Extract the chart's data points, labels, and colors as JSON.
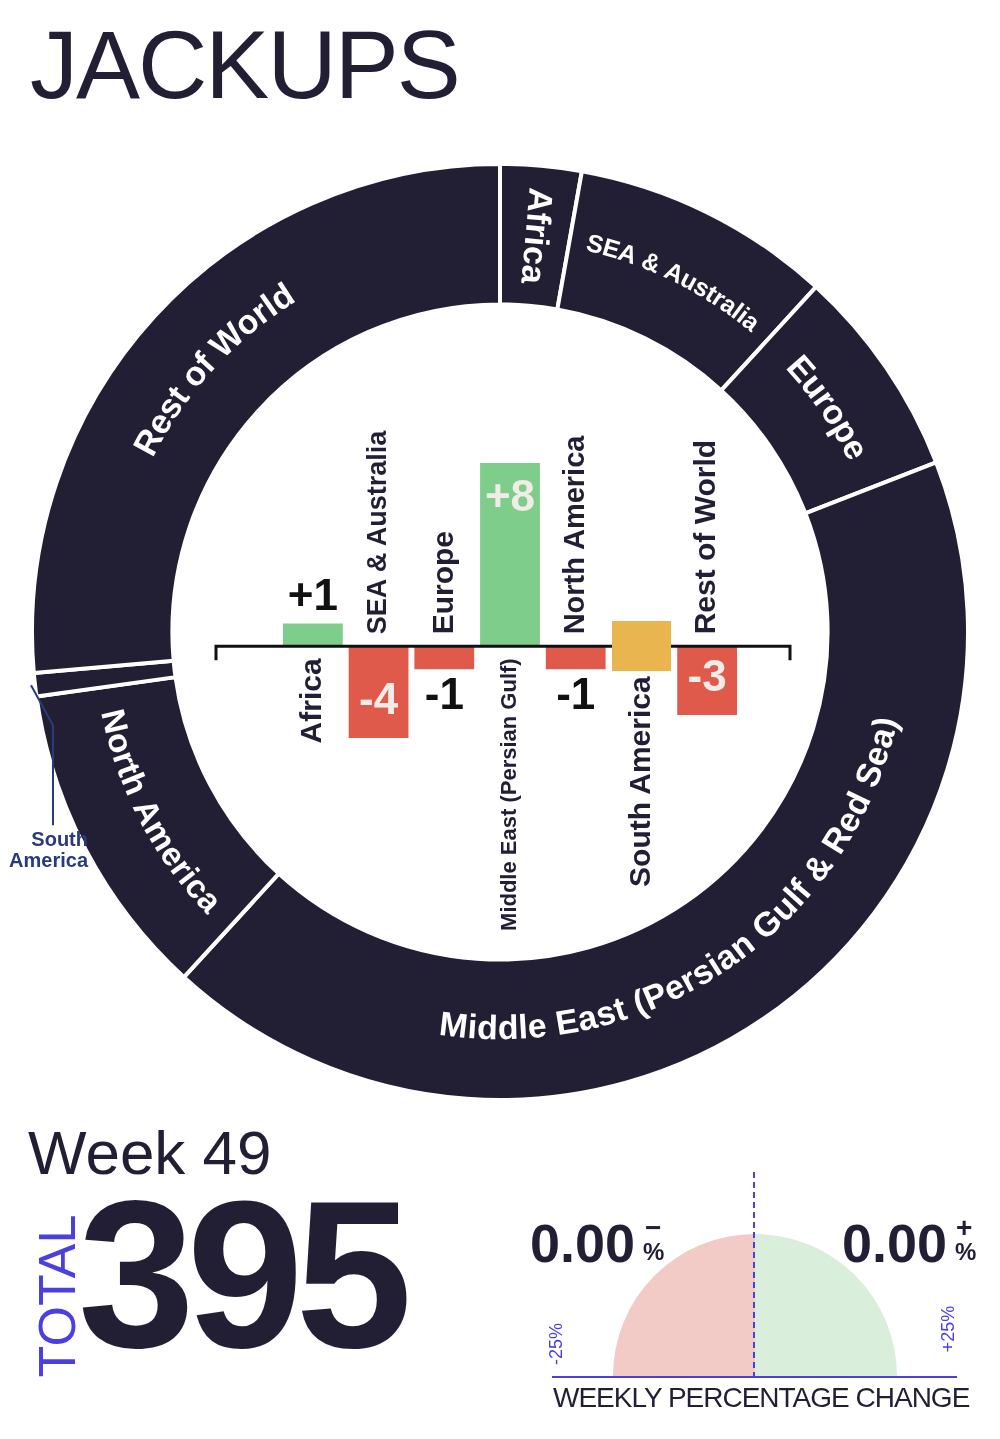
{
  "chart_data": [
    {
      "type": "donut",
      "title": "JACKUPS",
      "categories": [
        "Africa",
        "SEA & Australia",
        "Europe",
        "Middle East (Persian Gulf & Red Sea)",
        "North America",
        "South America",
        "Rest of World"
      ],
      "values": [
        2.8,
        9.0,
        7.3,
        42.7,
        11.0,
        0.8,
        26.4
      ],
      "colors": [
        "#221f35",
        "#221f35",
        "#221f35",
        "#221f35",
        "#221f35",
        "#221f35",
        "#221f35"
      ]
    },
    {
      "type": "bar",
      "categories": [
        "Africa",
        "SEA & Australia",
        "Europe",
        "Middle East (Persian Gulf)",
        "North America",
        "South America",
        "Rest of World"
      ],
      "values": [
        1,
        -4,
        -1,
        8,
        -1,
        0,
        -3
      ],
      "colors": [
        "#7fcd8b",
        "#e05a4b",
        "#e05a4b",
        "#7fcd8b",
        "#e05a4b",
        "#e9b54e",
        "#e05a4b"
      ],
      "value_labels": [
        "+1",
        "-4",
        "-1",
        "+8",
        "-1",
        null,
        "-3"
      ]
    },
    {
      "type": "other",
      "title": "Week 49",
      "annotations": [
        "TOTAL",
        "395",
        "0.00",
        "−",
        "%",
        "0.00",
        "+",
        "%",
        "-25%",
        "+25%",
        "WEEKLY PERCENTAGE CHANGE"
      ]
    }
  ]
}
